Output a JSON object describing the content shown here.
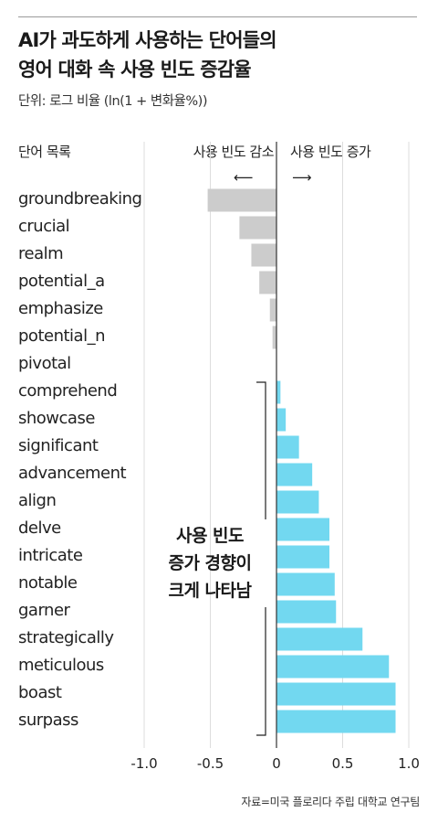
{
  "header": {
    "title_line1": "AI가 과도하게 사용하는 단어들의",
    "title_line2": "영어 대화 속 사용 빈도 증감율",
    "subtitle": "단위: 로그 비율 (ln(1 + 변화율%))"
  },
  "labels": {
    "column_header": "단어 목록",
    "decrease": "사용 빈도 감소",
    "increase": "사용 빈도 증가",
    "arrow_left": "⟵",
    "arrow_right": "⟶",
    "callout_line1": "사용 빈도",
    "callout_line2": "증가 경향이",
    "callout_line3": "크게 나타남"
  },
  "source": "자료=미국 플로리다 주립 대학교 연구팀",
  "colors": {
    "decrease_bar": "#cccccc",
    "increase_bar": "#72d8f0",
    "grid": "#dddddd",
    "zero_line": "#333333"
  },
  "chart_data": {
    "type": "bar",
    "orientation": "horizontal",
    "categories": [
      "groundbreaking",
      "crucial",
      "realm",
      "potential_a",
      "emphasize",
      "potential_n",
      "pivotal",
      "comprehend",
      "showcase",
      "significant",
      "advancement",
      "align",
      "delve",
      "intricate",
      "notable",
      "garner",
      "strategically",
      "meticulous",
      "boast",
      "surpass"
    ],
    "values": [
      -0.52,
      -0.28,
      -0.19,
      -0.13,
      -0.05,
      -0.03,
      0.0,
      0.03,
      0.07,
      0.17,
      0.27,
      0.32,
      0.4,
      0.4,
      0.44,
      0.45,
      0.65,
      0.85,
      0.9,
      0.9
    ],
    "xlim": [
      -1.0,
      1.0
    ],
    "xticks": [
      "-1.0",
      "-0.5",
      "0",
      "0.5",
      "1.0"
    ],
    "xtick_values": [
      -1.0,
      -0.5,
      0,
      0.5,
      1.0
    ],
    "grid": true
  }
}
